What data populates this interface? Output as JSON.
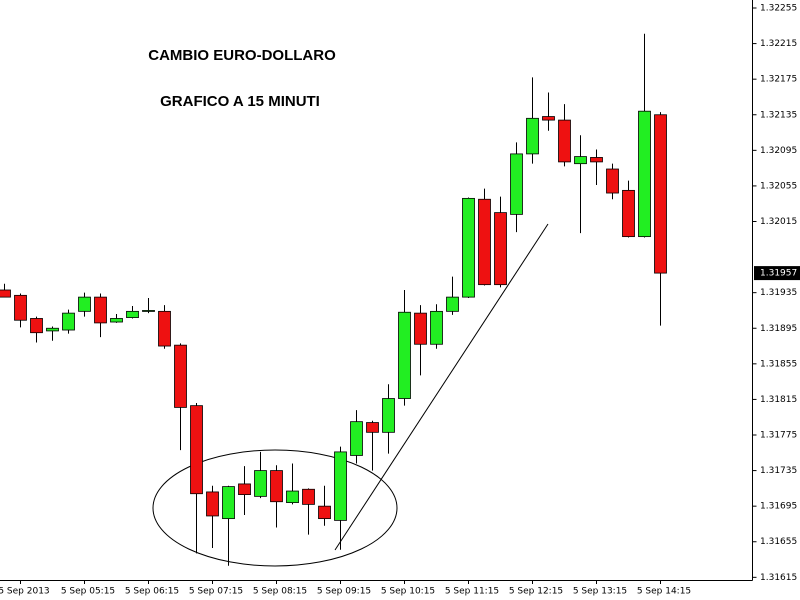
{
  "chart_data": {
    "type": "candlestick",
    "annotations": [
      "CAMBIO EURO-DOLLARO",
      "GRAFICO A 15 MINUTI"
    ],
    "categories": [
      null,
      "5 Sep 2013",
      null,
      null,
      null,
      "5 Sep 05:15",
      null,
      null,
      null,
      "5 Sep 06:15",
      null,
      null,
      null,
      "5 Sep 07:15",
      null,
      null,
      null,
      "5 Sep 08:15",
      null,
      null,
      null,
      "5 Sep 09:15",
      null,
      null,
      null,
      "5 Sep 10:15",
      null,
      null,
      null,
      "5 Sep 11:15",
      null,
      null,
      null,
      "5 Sep 12:15",
      null,
      null,
      null,
      "5 Sep 13:15",
      null,
      null,
      null,
      "5 Sep 14:15"
    ],
    "open": [
      1.31938,
      1.31932,
      1.31906,
      1.31892,
      1.31893,
      1.31914,
      1.3193,
      1.31902,
      1.31907,
      1.31914,
      1.31914,
      1.31876,
      1.31808,
      1.31711,
      1.31681,
      1.3172,
      1.31706,
      1.31735,
      1.31699,
      1.31714,
      1.31695,
      1.31679,
      1.31752,
      1.31789,
      1.31778,
      1.31816,
      1.31912,
      1.31877,
      1.31914,
      1.3193,
      1.3204,
      1.32025,
      1.32023,
      1.32091,
      1.32133,
      1.32129,
      1.3208,
      1.32087,
      1.32074,
      1.3205,
      1.31998,
      1.32135
    ],
    "high": [
      1.31945,
      1.31934,
      1.31908,
      1.31897,
      1.31916,
      1.31935,
      1.31934,
      1.31911,
      1.3192,
      1.31929,
      1.31921,
      1.31878,
      1.31811,
      1.31718,
      1.31718,
      1.3174,
      1.31756,
      1.31741,
      1.31743,
      1.31715,
      1.31718,
      1.31762,
      1.31803,
      1.31791,
      1.31832,
      1.31938,
      1.31921,
      1.31922,
      1.31953,
      1.32042,
      1.32052,
      1.32043,
      1.32104,
      1.32177,
      1.3216,
      1.32147,
      1.32112,
      1.32096,
      1.3208,
      1.32061,
      1.32226,
      1.32138
    ],
    "low": [
      1.3193,
      1.31896,
      1.31879,
      1.31881,
      1.31889,
      1.31908,
      1.31885,
      1.31901,
      1.31906,
      1.31912,
      1.31872,
      1.31758,
      1.31642,
      1.31648,
      1.31628,
      1.31685,
      1.31704,
      1.31671,
      1.31697,
      1.31663,
      1.31673,
      1.31646,
      1.31743,
      1.31735,
      1.31754,
      1.31808,
      1.31842,
      1.31872,
      1.3191,
      1.31929,
      1.31943,
      1.31941,
      1.32003,
      1.3208,
      1.32117,
      1.32077,
      1.32002,
      1.32056,
      1.3204,
      1.31997,
      1.31997,
      1.31898
    ],
    "close": [
      1.3193,
      1.31904,
      1.3189,
      1.31895,
      1.31912,
      1.3193,
      1.31901,
      1.31906,
      1.31914,
      1.31915,
      1.31875,
      1.31806,
      1.31709,
      1.31684,
      1.31717,
      1.31708,
      1.31735,
      1.317,
      1.31712,
      1.31697,
      1.31681,
      1.31756,
      1.3179,
      1.31778,
      1.31816,
      1.31913,
      1.31877,
      1.31914,
      1.3193,
      1.32041,
      1.31944,
      1.31944,
      1.32091,
      1.32131,
      1.32129,
      1.32082,
      1.32088,
      1.32082,
      1.32047,
      1.31998,
      1.32139,
      1.31957
    ],
    "up_color": "#22ee22",
    "down_color": "#ee1111",
    "ylim": [
      1.31612,
      1.32264
    ],
    "yticks": [
      1.31615,
      1.31655,
      1.31695,
      1.31735,
      1.31775,
      1.31815,
      1.31855,
      1.31895,
      1.31935,
      1.32015,
      1.32055,
      1.32095,
      1.32135,
      1.32175,
      1.32215,
      1.32255
    ],
    "last_price": 1.31957
  }
}
